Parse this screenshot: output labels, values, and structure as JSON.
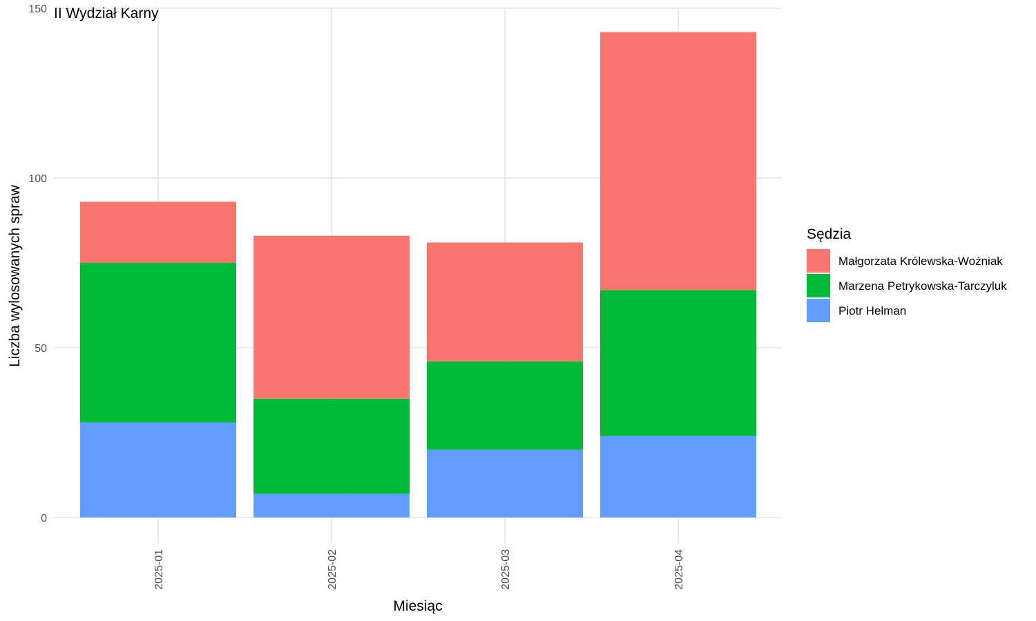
{
  "chart_data": {
    "type": "bar",
    "stacked": true,
    "title": "II Wydział Karny",
    "xlabel": "Miesiąc",
    "ylabel": "Liczba wylosowanych spraw",
    "ylim": [
      0,
      150
    ],
    "yticks": [
      0,
      50,
      100,
      150
    ],
    "categories": [
      "2025-01",
      "2025-02",
      "2025-03",
      "2025-04"
    ],
    "grid": true,
    "legend": {
      "title": "Sędzia",
      "position": "right"
    },
    "series": [
      {
        "name": "Piotr Helman",
        "color": "#619cff",
        "values": [
          28,
          7,
          20,
          24
        ]
      },
      {
        "name": "Marzena Petrykowska-Tarczyluk",
        "color": "#00ba38",
        "values": [
          47,
          28,
          26,
          43
        ]
      },
      {
        "name": "Małgorzata Królewska-Woźniak",
        "color": "#f8766d",
        "values": [
          18,
          48,
          35,
          76
        ]
      }
    ],
    "legend_order": [
      "Małgorzata Królewska-Woźniak",
      "Marzena Petrykowska-Tarczyluk",
      "Piotr Helman"
    ]
  }
}
